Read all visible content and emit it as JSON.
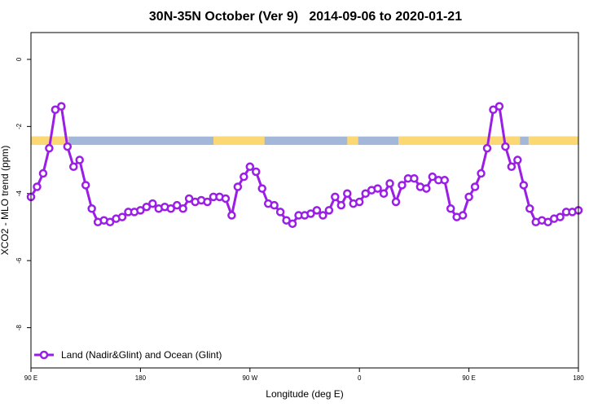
{
  "chart_data": {
    "type": "line",
    "title": "30N-35N October (Ver 9)   2014-09-06 to 2020-01-21",
    "xlabel": "Longitude (deg E)",
    "ylabel": "XCO2 - MLO trend (ppm)",
    "x_ticks": [
      {
        "value": 90,
        "label": "90 E"
      },
      {
        "value": 180,
        "label": "180"
      },
      {
        "value": 270,
        "label": "90 W"
      },
      {
        "value": 360,
        "label": "0"
      },
      {
        "value": 450,
        "label": "90 E"
      },
      {
        "value": 540,
        "label": "180"
      }
    ],
    "y_ticks": [
      {
        "value": 0,
        "label": "0"
      },
      {
        "value": -2,
        "label": "-2"
      },
      {
        "value": -4,
        "label": "-4"
      },
      {
        "value": -6,
        "label": "-6"
      },
      {
        "value": -8,
        "label": "-8"
      }
    ],
    "xlim": [
      90,
      540
    ],
    "ylim": [
      -9.2,
      0.8
    ],
    "grid": false,
    "legend_position": "bottom-left",
    "series": [
      {
        "name": "Land (Nadir&Glint) and Ocean (Glint)",
        "color": "#9a1ee6",
        "x": [
          90,
          95,
          100,
          105,
          110,
          115,
          120,
          125,
          130,
          135,
          140,
          145,
          150,
          155,
          160,
          165,
          170,
          175,
          180,
          185,
          190,
          195,
          200,
          205,
          210,
          215,
          220,
          225,
          230,
          235,
          240,
          245,
          250,
          255,
          260,
          265,
          270,
          275,
          280,
          285,
          290,
          295,
          300,
          305,
          310,
          315,
          320,
          325,
          330,
          335,
          340,
          345,
          350,
          355,
          360,
          365,
          370,
          375,
          380,
          385,
          390,
          395,
          400,
          405,
          410,
          415,
          420,
          425,
          430,
          435,
          440,
          445,
          450,
          455,
          460,
          465,
          470,
          475,
          480,
          485,
          490,
          495,
          500,
          505,
          510,
          515,
          520,
          525,
          530,
          535,
          540
        ],
        "y": [
          -4.1,
          -3.8,
          -3.4,
          -2.65,
          -1.5,
          -1.4,
          -2.6,
          -3.2,
          -3.0,
          -3.75,
          -4.45,
          -4.85,
          -4.8,
          -4.85,
          -4.75,
          -4.7,
          -4.55,
          -4.55,
          -4.5,
          -4.4,
          -4.3,
          -4.45,
          -4.4,
          -4.45,
          -4.35,
          -4.45,
          -4.15,
          -4.25,
          -4.2,
          -4.25,
          -4.1,
          -4.1,
          -4.15,
          -4.65,
          -3.8,
          -3.5,
          -3.2,
          -3.35,
          -3.85,
          -4.3,
          -4.35,
          -4.55,
          -4.8,
          -4.9,
          -4.65,
          -4.65,
          -4.6,
          -4.5,
          -4.65,
          -4.5,
          -4.1,
          -4.35,
          -4.0,
          -4.3,
          -4.25,
          -4.0,
          -3.9,
          -3.85,
          -4.0,
          -3.7,
          -4.25,
          -3.75,
          -3.55,
          -3.55,
          -3.8,
          -3.85,
          -3.5,
          -3.6,
          -3.6,
          -4.45,
          -4.7,
          -4.65,
          -4.1,
          -3.8,
          -3.4,
          -2.65,
          -1.5,
          -1.4,
          -2.6,
          -3.2,
          -3.0,
          -3.75,
          -4.45,
          -4.85,
          -4.8,
          -4.85,
          -4.75,
          -4.7,
          -4.55,
          -4.55,
          -4.5
        ]
      }
    ],
    "land_ocean_band": {
      "y_top": -2.3,
      "y_bottom": -2.55,
      "ocean_color": "#a3b8d8",
      "land_color": "#fcd874",
      "land_ranges": [
        [
          90,
          121
        ],
        [
          240,
          282
        ],
        [
          350,
          359
        ],
        [
          392,
          492
        ],
        [
          499,
          540
        ]
      ]
    }
  }
}
